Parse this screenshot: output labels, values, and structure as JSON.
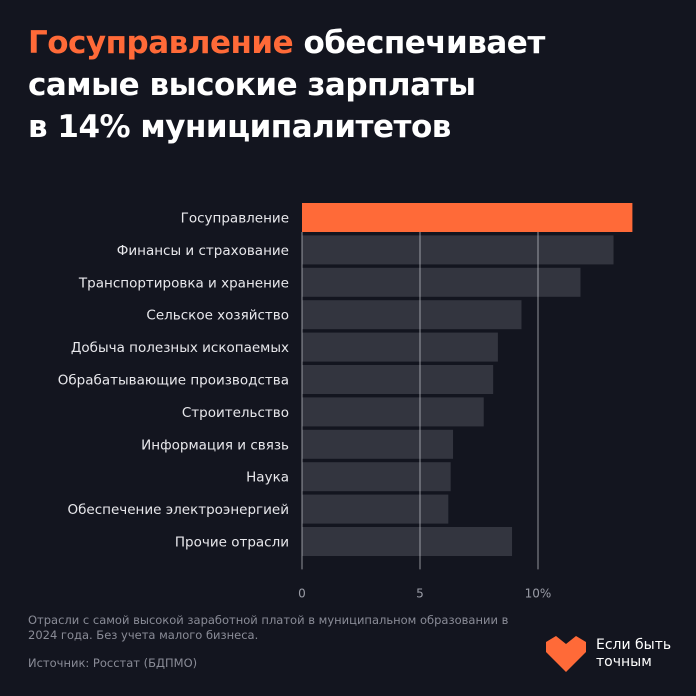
{
  "title": {
    "highlight": "Госуправление",
    "rest_line1": " обеспечивает",
    "line2": "самые высокие зарплаты",
    "line3": "в 14% муниципалитетов"
  },
  "colors": {
    "background": "#13151f",
    "highlight": "#ff6a38",
    "bar": "#33353f",
    "grid": "#c8c9cf"
  },
  "chart_data": {
    "type": "bar",
    "orientation": "horizontal",
    "categories": [
      "Госуправление",
      "Финансы и страхование",
      "Транспортировка и хранение",
      "Сельское хозяйство",
      "Добыча полезных ископаемых",
      "Обрабатывающие производства",
      "Строительство",
      "Информация и связь",
      "Наука",
      "Обеспечение электроэнергией",
      "Прочие отрасли"
    ],
    "values": [
      14.0,
      13.2,
      11.8,
      9.3,
      8.3,
      8.1,
      7.7,
      6.4,
      6.3,
      6.2,
      8.9
    ],
    "highlight_index": 0,
    "xlim": [
      0,
      14
    ],
    "xticks": [
      0,
      5,
      10
    ],
    "xtick_labels": [
      "0",
      "5",
      "10%"
    ],
    "grid": true,
    "unit": "%"
  },
  "footer": {
    "note": "Отрасли с самой высокой заработной платой в муниципальном образовании в 2024 года. Без учета малого бизнеса.",
    "source": "Источник: Росстат (БДПМО)",
    "logo_line1": "Если быть",
    "logo_line2": "точным"
  }
}
